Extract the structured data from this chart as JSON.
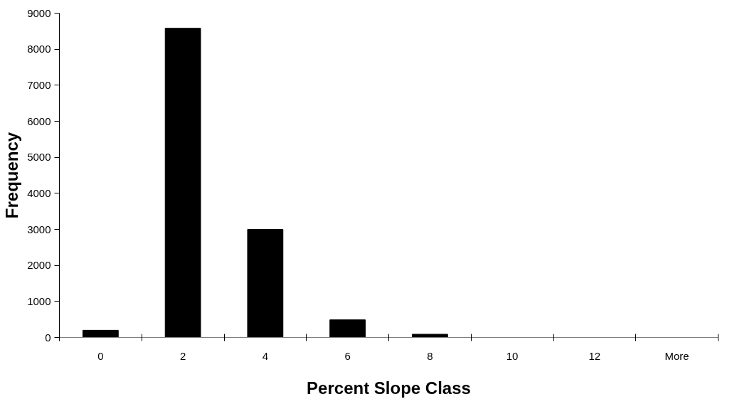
{
  "chart_data": {
    "type": "bar",
    "xlabel": "Percent Slope Class",
    "ylabel": "Frequency",
    "categories": [
      "0",
      "2",
      "4",
      "6",
      "8",
      "10",
      "12",
      "More"
    ],
    "values": [
      200,
      8580,
      3000,
      490,
      90,
      0,
      0,
      0
    ],
    "color": "#000000",
    "ylim": [
      0,
      9000
    ],
    "yticks": [
      0,
      1000,
      2000,
      3000,
      4000,
      5000,
      6000,
      7000,
      8000,
      9000
    ],
    "grid": false
  }
}
